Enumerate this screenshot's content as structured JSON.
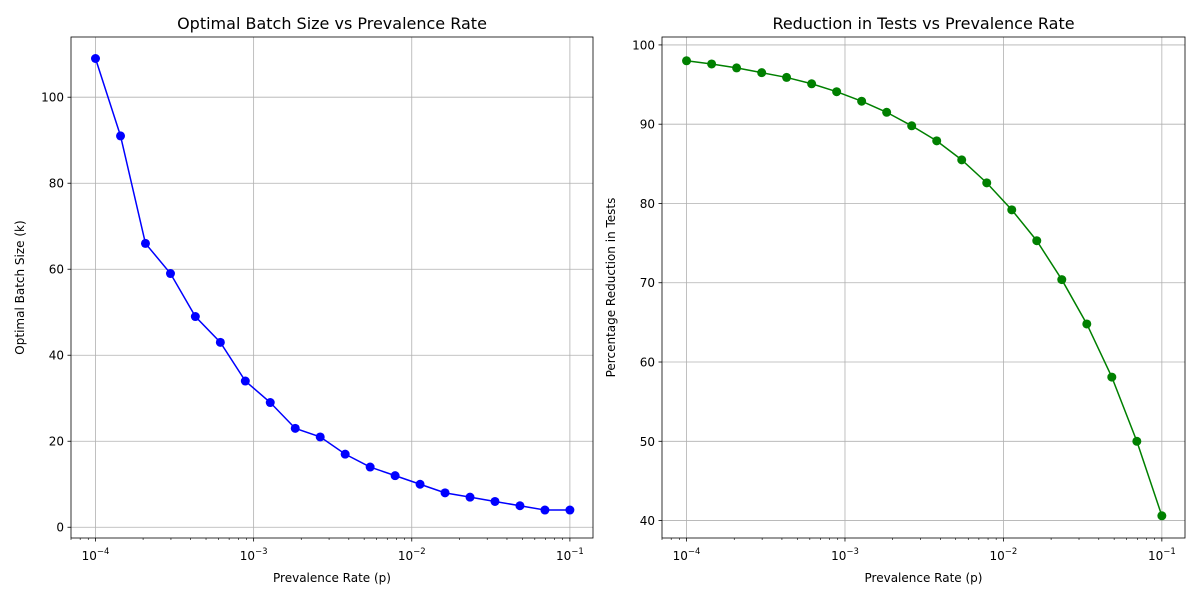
{
  "chart_data": [
    {
      "type": "line",
      "title": "Optimal Batch Size vs Prevalence Rate",
      "xlabel": "Prevalence Rate (p)",
      "ylabel": "Optimal Batch Size (k)",
      "xscale": "log",
      "xlim": [
        7e-05,
        0.14
      ],
      "ylim": [
        -2.5,
        114
      ],
      "grid": true,
      "x_tick_labels": [
        {
          "base": "10",
          "exp": "−4",
          "value": 0.0001
        },
        {
          "base": "10",
          "exp": "−3",
          "value": 0.001
        },
        {
          "base": "10",
          "exp": "−2",
          "value": 0.01
        },
        {
          "base": "10",
          "exp": "−1",
          "value": 0.1
        }
      ],
      "y_ticks": [
        0,
        20,
        40,
        60,
        80,
        100
      ],
      "color": "#0000ff",
      "marker": "circle",
      "x": [
        0.0001,
        0.000144,
        0.000207,
        0.000298,
        0.000428,
        0.000616,
        0.000886,
        0.001274,
        0.001833,
        0.002637,
        0.003793,
        0.005456,
        0.007848,
        0.011288,
        0.016238,
        0.023357,
        0.033598,
        0.048329,
        0.069519,
        0.1
      ],
      "series": [
        {
          "values": [
            109,
            91,
            66,
            59,
            49,
            43,
            34,
            29,
            23,
            21,
            17,
            14,
            12,
            10,
            8,
            7,
            6,
            5,
            4,
            4
          ]
        }
      ]
    },
    {
      "type": "line",
      "title": "Reduction in Tests vs Prevalence Rate",
      "xlabel": "Prevalence Rate (p)",
      "ylabel": "Percentage Reduction in Tests",
      "xscale": "log",
      "xlim": [
        7e-05,
        0.14
      ],
      "ylim": [
        37.8,
        101
      ],
      "grid": true,
      "x_tick_labels": [
        {
          "base": "10",
          "exp": "−4",
          "value": 0.0001
        },
        {
          "base": "10",
          "exp": "−3",
          "value": 0.001
        },
        {
          "base": "10",
          "exp": "−2",
          "value": 0.01
        },
        {
          "base": "10",
          "exp": "−1",
          "value": 0.1
        }
      ],
      "y_ticks": [
        40,
        50,
        60,
        70,
        80,
        90,
        100
      ],
      "color": "#008000",
      "marker": "circle",
      "x": [
        0.0001,
        0.000144,
        0.000207,
        0.000298,
        0.000428,
        0.000616,
        0.000886,
        0.001274,
        0.001833,
        0.002637,
        0.003793,
        0.005456,
        0.007848,
        0.011288,
        0.016238,
        0.023357,
        0.033598,
        0.048329,
        0.069519,
        0.1
      ],
      "series": [
        {
          "values": [
            98.0,
            97.6,
            97.1,
            96.5,
            95.9,
            95.1,
            94.1,
            92.9,
            91.5,
            89.8,
            87.9,
            85.5,
            82.6,
            79.2,
            75.3,
            70.4,
            64.8,
            58.1,
            50.0,
            40.6
          ]
        }
      ]
    }
  ]
}
